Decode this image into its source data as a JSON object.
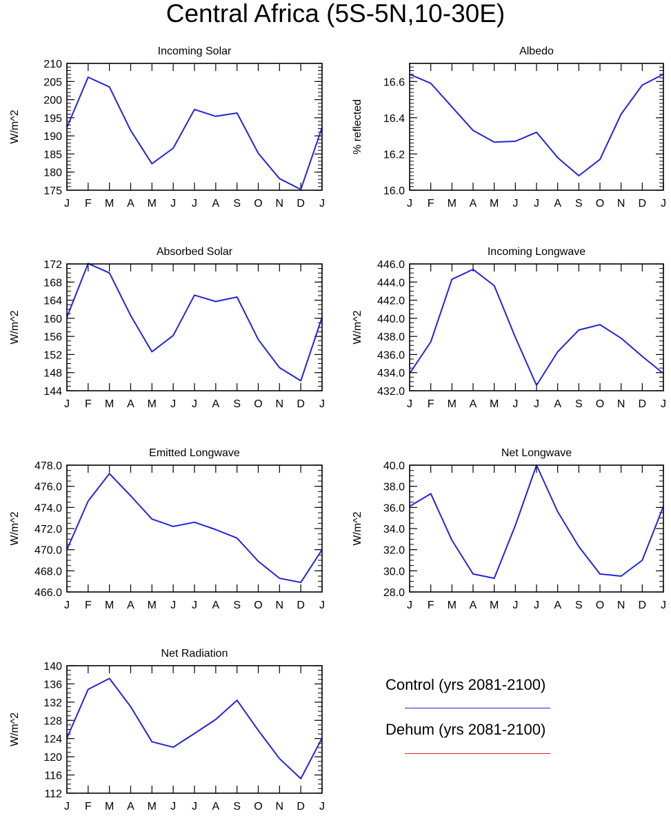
{
  "figure": {
    "title": "Central Africa (5S-5N,10-30E)"
  },
  "months": [
    "J",
    "F",
    "M",
    "A",
    "M",
    "J",
    "J",
    "A",
    "S",
    "O",
    "N",
    "D",
    "J"
  ],
  "colors": {
    "control": "#2222dd",
    "dehum": "#dd2222",
    "axis": "#000000"
  },
  "legend": {
    "control_label": "Control (yrs 2081-2100)",
    "dehum_label": "Dehum (yrs 2081-2100)"
  },
  "chart_data": [
    {
      "type": "line",
      "title": "Incoming Solar",
      "ylabel": "W/m^2",
      "ylim": [
        175,
        210
      ],
      "yticks": [
        175,
        180,
        185,
        190,
        195,
        200,
        205,
        210
      ],
      "yminor": 1,
      "decimals": 0,
      "categories": [
        "J",
        "F",
        "M",
        "A",
        "M",
        "J",
        "J",
        "A",
        "S",
        "O",
        "N",
        "D",
        "J"
      ],
      "series": [
        {
          "values": [
            192.3,
            206.2,
            203.5,
            191.5,
            182.3,
            186.6,
            197.3,
            195.4,
            196.3,
            185.2,
            178.2,
            175.2,
            192.3
          ]
        }
      ]
    },
    {
      "type": "line",
      "title": "Albedo",
      "ylabel": "% reflected",
      "ylim": [
        16.0,
        16.7
      ],
      "yticks": [
        16.0,
        16.2,
        16.4,
        16.6
      ],
      "yminor": 0.02,
      "decimals": 1,
      "categories": [
        "J",
        "F",
        "M",
        "A",
        "M",
        "J",
        "J",
        "A",
        "S",
        "O",
        "N",
        "D",
        "J"
      ],
      "series": [
        {
          "values": [
            16.64,
            16.59,
            16.46,
            16.33,
            16.265,
            16.27,
            16.32,
            16.18,
            16.08,
            16.17,
            16.42,
            16.58,
            16.64
          ]
        }
      ]
    },
    {
      "type": "line",
      "title": "Absorbed Solar",
      "ylabel": "W/m^2",
      "ylim": [
        144,
        172
      ],
      "yticks": [
        144,
        148,
        152,
        156,
        160,
        164,
        168,
        172
      ],
      "yminor": 1,
      "decimals": 0,
      "categories": [
        "J",
        "F",
        "M",
        "A",
        "M",
        "J",
        "J",
        "A",
        "S",
        "O",
        "N",
        "D",
        "J"
      ],
      "series": [
        {
          "values": [
            160.2,
            172.1,
            170,
            160.6,
            152.6,
            156.2,
            165.1,
            163.7,
            164.7,
            155.3,
            149.1,
            146.2,
            160.2
          ]
        }
      ]
    },
    {
      "type": "line",
      "title": "Incoming Longwave",
      "ylabel": "W/m^2",
      "ylim": [
        432,
        446
      ],
      "yticks": [
        432,
        434,
        436,
        438,
        440,
        442,
        444,
        446
      ],
      "yminor": 0.5,
      "decimals": 1,
      "categories": [
        "J",
        "F",
        "M",
        "A",
        "M",
        "J",
        "J",
        "A",
        "S",
        "O",
        "N",
        "D",
        "J"
      ],
      "series": [
        {
          "values": [
            433.9,
            437.4,
            444.3,
            445.4,
            443.6,
            437.9,
            432.6,
            436.3,
            438.7,
            439.3,
            437.8,
            435.8,
            433.9
          ]
        }
      ]
    },
    {
      "type": "line",
      "title": "Emitted Longwave",
      "ylabel": "W/m^2",
      "ylim": [
        466,
        478
      ],
      "yticks": [
        466,
        468,
        470,
        472,
        474,
        476,
        478
      ],
      "yminor": 0.5,
      "decimals": 1,
      "categories": [
        "J",
        "F",
        "M",
        "A",
        "M",
        "J",
        "J",
        "A",
        "S",
        "O",
        "N",
        "D",
        "J"
      ],
      "series": [
        {
          "values": [
            470,
            474.6,
            477.2,
            475.1,
            472.9,
            472.2,
            472.6,
            471.9,
            471.1,
            468.9,
            467.3,
            466.9,
            470
          ]
        }
      ]
    },
    {
      "type": "line",
      "title": "Net Longwave",
      "ylabel": "W/m^2",
      "ylim": [
        28,
        40
      ],
      "yticks": [
        28,
        30,
        32,
        34,
        36,
        38,
        40
      ],
      "yminor": 0.5,
      "decimals": 1,
      "categories": [
        "J",
        "F",
        "M",
        "A",
        "M",
        "J",
        "J",
        "A",
        "S",
        "O",
        "N",
        "D",
        "J"
      ],
      "series": [
        {
          "values": [
            36.1,
            37.3,
            32.9,
            29.7,
            29.3,
            34.3,
            40,
            35.6,
            32.3,
            29.7,
            29.5,
            31,
            36.1
          ]
        }
      ]
    },
    {
      "type": "line",
      "title": "Net Radiation",
      "ylabel": "W/m^2",
      "ylim": [
        112,
        140
      ],
      "yticks": [
        112,
        116,
        120,
        124,
        128,
        132,
        136,
        140
      ],
      "yminor": 1,
      "decimals": 0,
      "categories": [
        "J",
        "F",
        "M",
        "A",
        "M",
        "J",
        "J",
        "A",
        "S",
        "O",
        "N",
        "D",
        "J"
      ],
      "series": [
        {
          "values": [
            124.1,
            134.8,
            137.2,
            131,
            123.3,
            122.1,
            125.1,
            128.2,
            132.4,
            125.8,
            119.6,
            115.2,
            124.1
          ]
        }
      ]
    }
  ]
}
